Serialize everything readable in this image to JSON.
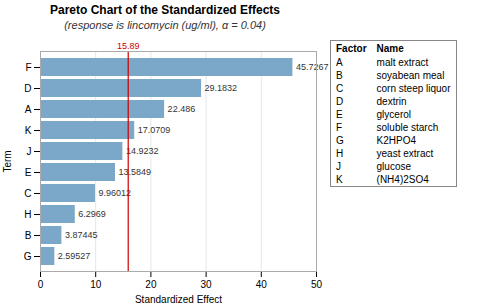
{
  "chart_data": {
    "type": "bar",
    "orientation": "horizontal",
    "title": "Pareto Chart of the Standardized Effects",
    "subtitle": "(response is lincomycin (ug/ml), α = 0.04)",
    "xlabel": "Standardized Effect",
    "ylabel": "Term",
    "categories": [
      "F",
      "D",
      "A",
      "K",
      "J",
      "E",
      "C",
      "H",
      "B",
      "G"
    ],
    "values": [
      45.7267,
      29.1832,
      22.486,
      17.0709,
      14.9232,
      13.5849,
      9.96012,
      6.2969,
      3.87445,
      2.59527
    ],
    "color": "#7BA7C9",
    "xlim": [
      0,
      50
    ],
    "xticks": [
      0,
      10,
      20,
      30,
      40,
      50
    ],
    "grid": true,
    "data_labels": true,
    "reference_line": {
      "value": 15.89,
      "color": "#CC0000"
    },
    "factor_table": {
      "headers": [
        "Factor",
        "Name"
      ],
      "rows": [
        [
          "A",
          "malt extract"
        ],
        [
          "B",
          "soyabean meal"
        ],
        [
          "C",
          "corn steep liquor"
        ],
        [
          "D",
          "dextrin"
        ],
        [
          "E",
          "glycerol"
        ],
        [
          "F",
          "soluble starch"
        ],
        [
          "G",
          "K2HPO4"
        ],
        [
          "H",
          "yeast extract"
        ],
        [
          "J",
          "glucose"
        ],
        [
          "K",
          "(NH4)2SO4"
        ]
      ]
    }
  }
}
